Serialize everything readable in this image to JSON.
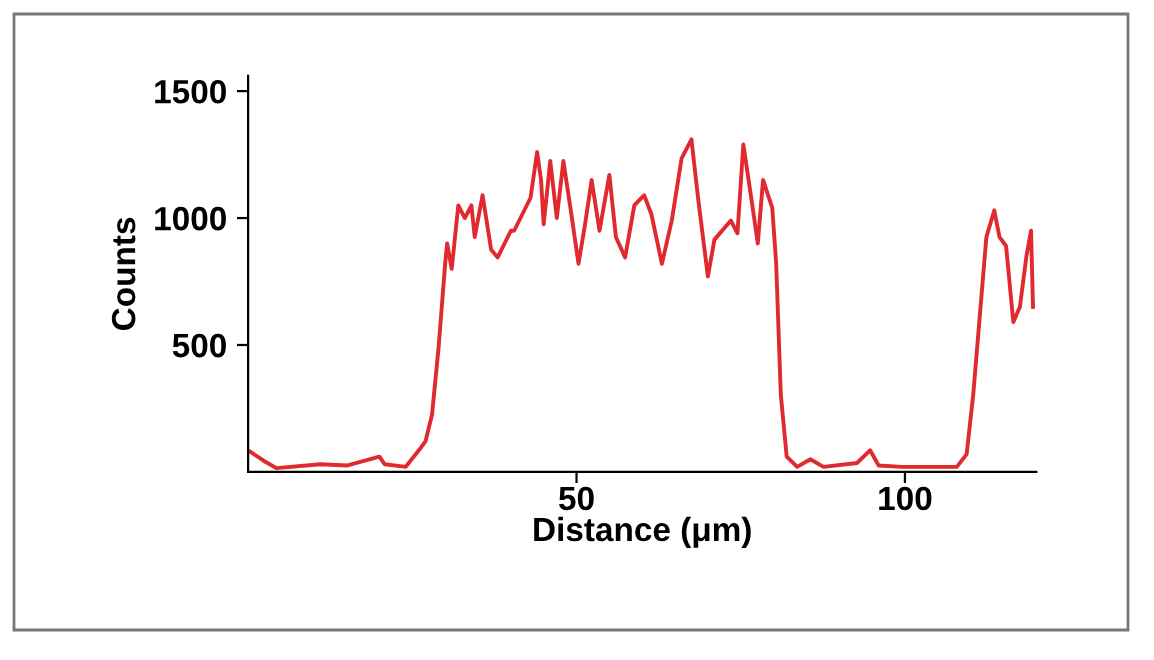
{
  "chart_data": {
    "type": "line",
    "xlabel": "Distance (μm)",
    "ylabel": "Counts",
    "xlim": [
      0,
      120
    ],
    "ylim": [
      0,
      1560
    ],
    "xticks": [
      50,
      100
    ],
    "yticks": [
      500,
      1000,
      1500
    ],
    "grid": false,
    "legend": false,
    "marker": "none",
    "line_style": "solid",
    "series": [
      {
        "color": "#e02a2f",
        "x": [
          0.3,
          2.3,
          4.3,
          11,
          15,
          20,
          20.8,
          24,
          26,
          27,
          28,
          29,
          30,
          30.3,
          31,
          32,
          33,
          34,
          34.5,
          35.7,
          37,
          38,
          40,
          40.5,
          43,
          44,
          44.6,
          45,
          46,
          47,
          48,
          49.3,
          50.3,
          51.3,
          52.3,
          53.5,
          55,
          56,
          57.4,
          58.8,
          60.3,
          61.4,
          63,
          64.5,
          66,
          67.5,
          68.5,
          70,
          71,
          73.5,
          74.5,
          75.4,
          76.6,
          77.6,
          78.4,
          79.8,
          80.4,
          81.1,
          82,
          83.6,
          85.6,
          87.6,
          92.7,
          94.7,
          96,
          99.5,
          107.9,
          109.4,
          110.4,
          111.4,
          112.4,
          113.6,
          114.4,
          115.4,
          116.5,
          117.5,
          118.5,
          119.2,
          119.5
        ],
        "values": [
          80,
          45,
          15,
          30,
          25,
          60,
          30,
          20,
          85,
          120,
          225,
          490,
          820,
          900,
          800,
          1050,
          1000,
          1050,
          925,
          1090,
          875,
          845,
          950,
          950,
          1080,
          1260,
          1150,
          975,
          1225,
          1000,
          1225,
          1000,
          820,
          975,
          1150,
          950,
          1170,
          925,
          845,
          1050,
          1090,
          1015,
          820,
          990,
          1235,
          1310,
          1080,
          770,
          915,
          990,
          940,
          1290,
          1080,
          900,
          1150,
          1040,
          820,
          305,
          60,
          20,
          50,
          20,
          35,
          85,
          25,
          20,
          20,
          70,
          305,
          615,
          925,
          1030,
          925,
          890,
          590,
          650,
          850,
          950,
          650
        ]
      }
    ]
  }
}
